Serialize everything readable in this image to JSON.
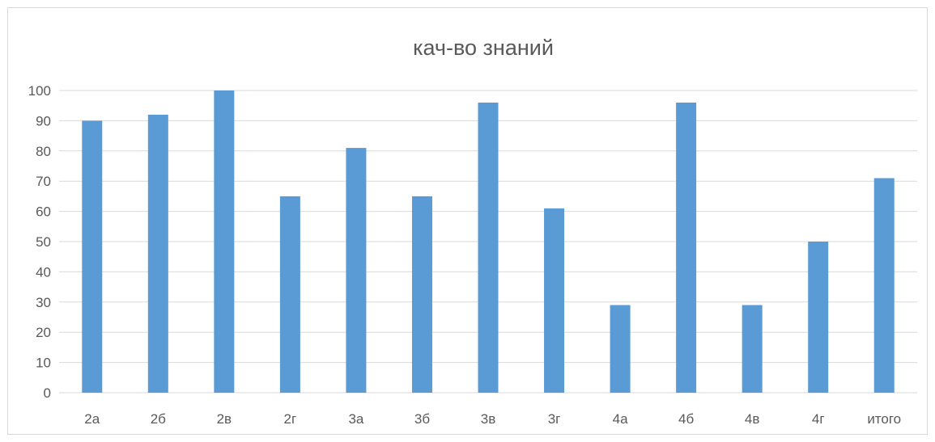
{
  "chart_data": {
    "type": "bar",
    "title": "кач-во знаний",
    "xlabel": "",
    "ylabel": "",
    "categories": [
      "2а",
      "2б",
      "2в",
      "2г",
      "3а",
      "3б",
      "3в",
      "3г",
      "4а",
      "4б",
      "4в",
      "4г",
      "итого"
    ],
    "series": [
      {
        "values": [
          90,
          92,
          100,
          65,
          81,
          65,
          96,
          61,
          29,
          96,
          29,
          50,
          71
        ],
        "color": "#5b9bd5"
      }
    ],
    "ylim": [
      0,
      100
    ],
    "yticks": [
      0,
      10,
      20,
      30,
      40,
      50,
      60,
      70,
      80,
      90,
      100
    ],
    "grid": true,
    "legend": "none"
  },
  "colors": {
    "bar": "#5b9bd5",
    "grid": "#d9d9d9",
    "text": "#595959",
    "frame_border": "#d9d9d9"
  }
}
